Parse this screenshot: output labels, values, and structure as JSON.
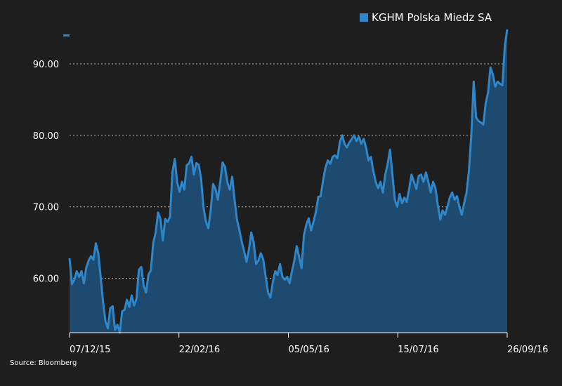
{
  "colors": {
    "background": "#1e1e1e",
    "line": "#2f86c9",
    "area": "#1d4a6e",
    "grid": "#bbbbbb",
    "axis": "#ffffff"
  },
  "legend": {
    "label": "KGHM Polska Miedz SA"
  },
  "source": "Source: Bloomberg",
  "chart_data": {
    "type": "area",
    "series": [
      {
        "name": "KGHM Polska Miedz SA",
        "values": [
          62.8,
          59.2,
          59.8,
          61.0,
          60.2,
          61.0,
          59.3,
          61.5,
          62.5,
          63.1,
          62.6,
          64.9,
          63.5,
          60.2,
          56.7,
          54.0,
          53.0,
          55.8,
          56.1,
          52.8,
          53.5,
          52.4,
          55.4,
          55.6,
          57.0,
          56.0,
          57.6,
          56.2,
          57.1,
          61.2,
          61.6,
          59.0,
          58.0,
          60.5,
          61.1,
          65.0,
          66.4,
          69.2,
          68.3,
          65.3,
          68.3,
          67.9,
          68.6,
          74.8,
          76.7,
          73.4,
          72.1,
          73.5,
          72.4,
          75.8,
          76.1,
          77.0,
          74.5,
          76.1,
          75.9,
          74.0,
          70.0,
          68.0,
          67.0,
          69.5,
          73.2,
          72.5,
          71.0,
          73.5,
          76.2,
          75.6,
          73.4,
          72.4,
          74.2,
          71.0,
          68.2,
          66.8,
          65.1,
          63.8,
          62.3,
          64.0,
          66.4,
          65.0,
          62.0,
          62.5,
          63.5,
          62.6,
          60.2,
          58.0,
          57.3,
          59.5,
          61.0,
          60.5,
          62.0,
          60.2,
          59.8,
          60.2,
          59.3,
          61.0,
          62.5,
          64.5,
          63.0,
          61.4,
          66.0,
          67.5,
          68.4,
          66.7,
          67.9,
          69.3,
          71.4,
          71.5,
          73.7,
          75.5,
          76.5,
          76.0,
          77.0,
          77.2,
          76.8,
          79.0,
          80.0,
          78.8,
          78.3,
          79.0,
          79.5,
          80.0,
          79.2,
          79.8,
          78.8,
          79.5,
          78.3,
          76.5,
          77.0,
          75.0,
          73.5,
          72.6,
          73.5,
          72.0,
          74.5,
          76.0,
          78.0,
          74.5,
          71.0,
          70.0,
          71.8,
          70.5,
          71.3,
          70.7,
          72.5,
          74.5,
          73.5,
          72.5,
          74.3,
          74.5,
          73.5,
          74.8,
          73.5,
          72.0,
          73.5,
          72.6,
          70.2,
          68.2,
          69.5,
          68.9,
          70.0,
          71.3,
          72.0,
          71.0,
          71.5,
          70.0,
          68.9,
          70.5,
          72.0,
          75.0,
          80.0,
          87.5,
          82.5,
          82.0,
          81.8,
          81.5,
          84.5,
          86.0,
          89.5,
          88.5,
          86.8,
          87.5,
          87.2,
          87.0,
          92.5,
          94.8
        ]
      }
    ],
    "x_tick_labels": [
      "07/12/15",
      "22/02/16",
      "05/05/16",
      "15/07/16",
      "26/09/16"
    ],
    "y_ticks": [
      60,
      70,
      80,
      90
    ],
    "y_tick_labels": [
      "60.00",
      "70.00",
      "80.00",
      "90.00"
    ],
    "ylim": [
      52.4,
      95.0
    ],
    "grid": "horizontal dotted",
    "legend_position": "top-right",
    "title": "",
    "xlabel": "",
    "ylabel": ""
  }
}
